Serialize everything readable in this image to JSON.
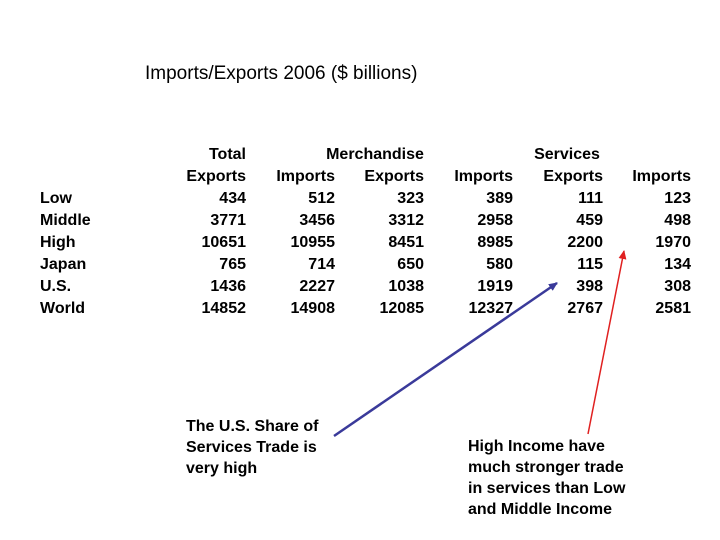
{
  "title": "Imports/Exports 2006 ($ billions)",
  "table": {
    "group_headers": {
      "total": "Total",
      "merchandise": "Merchandise",
      "services": "Services"
    },
    "column_headers": [
      "Exports",
      "Imports",
      "Exports",
      "Imports",
      "Exports",
      "Imports"
    ],
    "rows": [
      {
        "label": "Low",
        "values": [
          "434",
          "512",
          "323",
          "389",
          "111",
          "123"
        ]
      },
      {
        "label": "Middle",
        "values": [
          "3771",
          "3456",
          "3312",
          "2958",
          "459",
          "498"
        ]
      },
      {
        "label": "High",
        "values": [
          "10651",
          "10955",
          "8451",
          "8985",
          "2200",
          "1970"
        ]
      },
      {
        "label": "Japan",
        "values": [
          "765",
          "714",
          "650",
          "580",
          "115",
          "134"
        ]
      },
      {
        "label": "U.S.",
        "values": [
          "1436",
          "2227",
          "1038",
          "1919",
          "398",
          "308"
        ]
      },
      {
        "label": "World",
        "values": [
          "14852",
          "14908",
          "12085",
          "12327",
          "2767",
          "2581"
        ]
      }
    ]
  },
  "notes": {
    "us_share": "The U.S. Share of\nServices Trade is\nvery high",
    "high_income": "High Income have\nmuch stronger trade\nin services than Low\nand Middle Income"
  },
  "colors": {
    "blue_arrow": "#3a3a9a",
    "red_arrow": "#e02020"
  }
}
